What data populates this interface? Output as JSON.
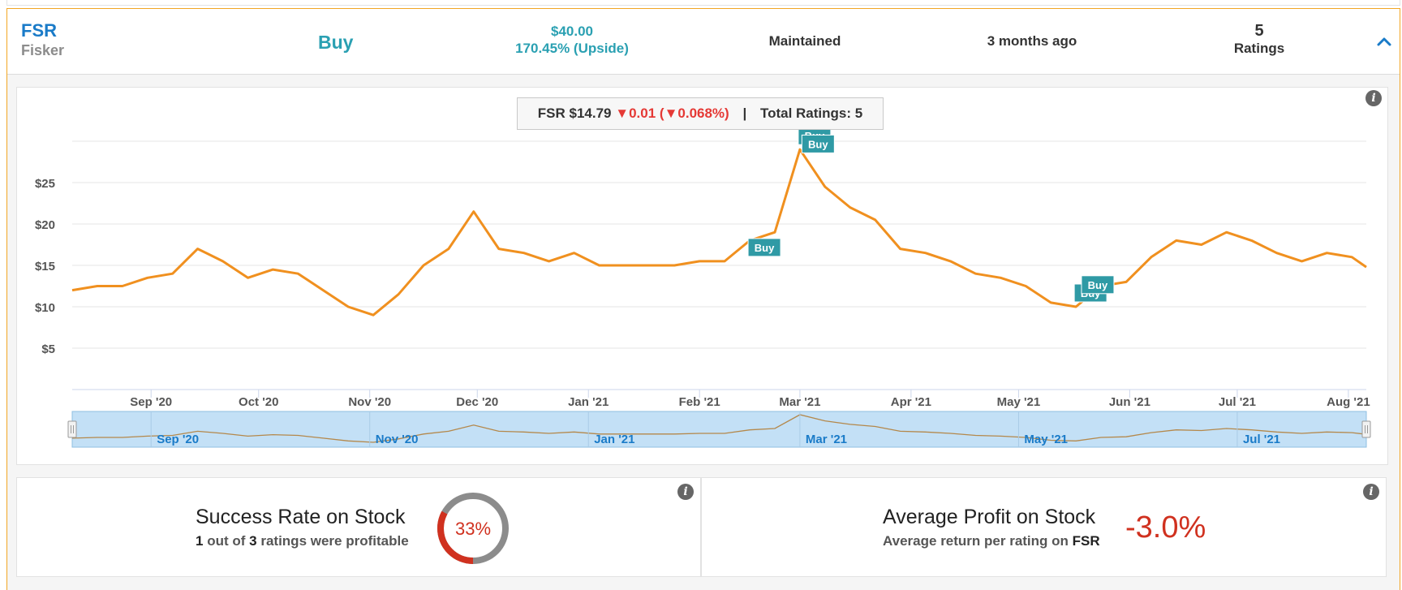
{
  "header": {
    "ticker": "FSR",
    "company": "Fisker",
    "rating": "Buy",
    "price_target": "$40.00",
    "upside": "170.45% (Upside)",
    "action": "Maintained",
    "time_ago": "3 months ago",
    "ratings_count": "5",
    "ratings_label": "Ratings",
    "collapse_icon": "chevron-up-icon"
  },
  "legend": {
    "label": "FSR $14.79",
    "change": "▼0.01 (▼0.068%)",
    "separator": "|",
    "total": "Total Ratings: 5"
  },
  "chart_data": {
    "type": "line",
    "title": "",
    "xlabel": "",
    "ylabel": "",
    "y_ticks": [
      "$5",
      "$10",
      "$15",
      "$20",
      "$25"
    ],
    "ylim": [
      0,
      30
    ],
    "x_ticks": [
      "Sep '20",
      "Oct '20",
      "Nov '20",
      "Dec '20",
      "Jan '21",
      "Feb '21",
      "Mar '21",
      "Apr '21",
      "May '21",
      "Jun '21",
      "Jul '21",
      "Aug '21"
    ],
    "navigator_ticks": [
      "Sep '20",
      "Nov '20",
      "Jan '21",
      "Mar '21",
      "May '21",
      "Jul '21"
    ],
    "x": [
      "2020-08-10",
      "2020-08-17",
      "2020-08-24",
      "2020-08-31",
      "2020-09-07",
      "2020-09-14",
      "2020-09-21",
      "2020-09-28",
      "2020-10-05",
      "2020-10-12",
      "2020-10-19",
      "2020-10-26",
      "2020-11-02",
      "2020-11-09",
      "2020-11-16",
      "2020-11-23",
      "2020-11-30",
      "2020-12-07",
      "2020-12-14",
      "2020-12-21",
      "2020-12-28",
      "2021-01-04",
      "2021-01-11",
      "2021-01-18",
      "2021-01-25",
      "2021-02-01",
      "2021-02-08",
      "2021-02-15",
      "2021-02-22",
      "2021-03-01",
      "2021-03-08",
      "2021-03-15",
      "2021-03-22",
      "2021-03-29",
      "2021-04-05",
      "2021-04-12",
      "2021-04-19",
      "2021-04-26",
      "2021-05-03",
      "2021-05-10",
      "2021-05-17",
      "2021-05-24",
      "2021-05-31",
      "2021-06-07",
      "2021-06-14",
      "2021-06-21",
      "2021-06-28",
      "2021-07-05",
      "2021-07-12",
      "2021-07-19",
      "2021-07-26",
      "2021-08-02",
      "2021-08-06"
    ],
    "series": [
      {
        "color": "#f0901f",
        "values": [
          12.0,
          12.5,
          12.5,
          13.5,
          14.0,
          17.0,
          15.5,
          13.5,
          14.5,
          14.0,
          12.0,
          10.0,
          9.0,
          11.5,
          15.0,
          17.0,
          21.5,
          17.0,
          16.5,
          15.5,
          16.5,
          15.0,
          15.0,
          15.0,
          15.0,
          15.5,
          15.5,
          18.0,
          19.0,
          29.0,
          24.5,
          22.0,
          20.5,
          17.0,
          16.5,
          15.5,
          14.0,
          13.5,
          12.5,
          10.5,
          10.0,
          12.5,
          13.0,
          16.0,
          18.0,
          17.5,
          19.0,
          18.0,
          16.5,
          15.5,
          16.5,
          16.0,
          14.79
        ]
      }
    ],
    "rating_flags": [
      {
        "label": "Buy",
        "x": "2021-02-15",
        "y": 15.5
      },
      {
        "label": "Buy",
        "x": "2021-03-01",
        "y": 29.0
      },
      {
        "label": "Buy",
        "x": "2021-03-02",
        "y": 28.0
      },
      {
        "label": "Buy",
        "x": "2021-05-17",
        "y": 10.0
      },
      {
        "label": "Buy",
        "x": "2021-05-19",
        "y": 11.0
      }
    ]
  },
  "success": {
    "title": "Success Rate on Stock",
    "profitable": "1",
    "out_of_text": "out of",
    "total": "3",
    "suffix": "ratings were profitable",
    "rate_label": "33%",
    "rate_fraction": 0.33,
    "ring_color": "#d0311f",
    "track_color": "#8c8c8c"
  },
  "profit": {
    "title": "Average Profit on Stock",
    "subtitle": "Average return per rating on",
    "ticker": "FSR",
    "value": "-3.0%"
  }
}
